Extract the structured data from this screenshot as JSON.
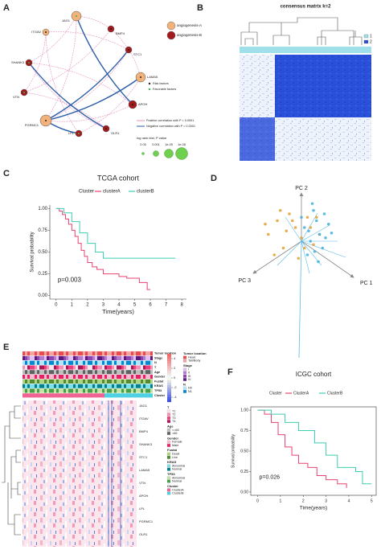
{
  "panel_labels": [
    "A",
    "B",
    "C",
    "D",
    "E",
    "F"
  ],
  "network": {
    "nodes": [
      {
        "label": "JAG1",
        "color": "#f2b27a"
      },
      {
        "label": "ITGAV",
        "color": "#f2b27a"
      },
      {
        "label": "BMP4",
        "color": "#a3191c"
      },
      {
        "label": "SHANK3",
        "color": "#a3191c"
      },
      {
        "label": "STC1",
        "color": "#a3191c"
      },
      {
        "label": "LAMA5",
        "color": "#f2b27a"
      },
      {
        "label": "VTN",
        "color": "#a3191c"
      },
      {
        "label": "APOH",
        "color": "#a3191c"
      },
      {
        "label": "PGRMC1",
        "color": "#f2b27a"
      },
      {
        "label": "LPL",
        "color": "#a3191c"
      },
      {
        "label": "OLR1",
        "color": "#a3191c"
      }
    ],
    "legend_groups": [
      {
        "name": "angiogenesis-A",
        "color": "#f2b27a"
      },
      {
        "name": "angiogenesis-B",
        "color": "#a3191c"
      }
    ],
    "factor_legend": [
      {
        "name": "Risk factors",
        "color": "#222222"
      },
      {
        "name": "Favorable factors",
        "color": "#3ab54a"
      }
    ],
    "edge_legend": [
      {
        "name": "Positive correlation with P < 0.0001",
        "color": "#e58fbf"
      },
      {
        "name": "Negative correlation with P < 0.0001",
        "color": "#2a5ca8"
      }
    ],
    "size_title": "log rank test, P value",
    "size_labels": [
      "0.05",
      "0.001",
      "1e-05",
      "1e-08"
    ]
  },
  "consensus": {
    "title": "consensus matrix k=2",
    "legend": [
      "1",
      "2"
    ]
  },
  "heatmap": {
    "annotations": [
      "Tumor location",
      "Stage",
      "N",
      "T",
      "Age",
      "Gender",
      "Fustat",
      "KRAS",
      "TP53",
      "Cluster"
    ],
    "color_ticks": [
      4,
      2,
      0,
      -2,
      -4
    ],
    "clim": [
      -5,
      5
    ],
    "genes": [
      "JAG1",
      "ITGAV",
      "BMP4",
      "SHANK3",
      "STC1",
      "LAMA5",
      "VTN",
      "APOH",
      "LPL",
      "PGRMC1",
      "OLR1"
    ],
    "legends": [
      {
        "title": "Tumor location",
        "items": [
          {
            "name": "Head",
            "color": "#e84c4c"
          },
          {
            "name": "Tail/Body",
            "color": "#f4a3a3"
          }
        ]
      },
      {
        "title": "Stage",
        "items": [
          {
            "name": "I",
            "color": "#e0c0f0"
          },
          {
            "name": "II",
            "color": "#b07cd0"
          },
          {
            "name": "III",
            "color": "#8e44ad"
          },
          {
            "name": "IV",
            "color": "#5b1a80"
          }
        ]
      },
      {
        "title": "N",
        "items": [
          {
            "name": "N0",
            "color": "#b3e5fc"
          },
          {
            "name": "N1",
            "color": "#0288d1"
          }
        ]
      },
      {
        "title": "T",
        "items": [
          {
            "name": "T1",
            "color": "#fce4ec"
          },
          {
            "name": "T2",
            "color": "#f48fb1"
          },
          {
            "name": "T3",
            "color": "#ec407a"
          },
          {
            "name": "T4",
            "color": "#ad1457"
          }
        ]
      },
      {
        "title": "Age",
        "items": [
          {
            "name": "<=65",
            "color": "#bdbdbd"
          },
          {
            "name": ">65",
            "color": "#616161"
          }
        ]
      },
      {
        "title": "Gender",
        "items": [
          {
            "name": "Female",
            "color": "#f8bbd0"
          },
          {
            "name": "Male",
            "color": "#e91e63"
          }
        ]
      },
      {
        "title": "Fustat",
        "items": [
          {
            "name": "Dead",
            "color": "#aed581"
          },
          {
            "name": "Live",
            "color": "#558b2f"
          }
        ]
      },
      {
        "title": "KRAS",
        "items": [
          {
            "name": "Abnormal",
            "color": "#80deea"
          },
          {
            "name": "Normal",
            "color": "#00838f"
          }
        ]
      },
      {
        "title": "TP53",
        "items": [
          {
            "name": "Abnormal",
            "color": "#c5e1a5"
          },
          {
            "name": "Normal",
            "color": "#43a047"
          }
        ]
      },
      {
        "title": "Cluster",
        "items": [
          {
            "name": "ClusterA",
            "color": "#f06292"
          },
          {
            "name": "ClusterB",
            "color": "#4dd0e1"
          }
        ]
      }
    ]
  },
  "chart_data": [
    {
      "type": "line",
      "step": true,
      "title": "TCGA cohort",
      "legend_title": "Cluster",
      "x_label": "Time(years)",
      "y_label": "Survival probability",
      "annotation": "p=0.003",
      "xlim": [
        -0.4,
        8.3
      ],
      "xticks": [
        0,
        1,
        2,
        3,
        4,
        5,
        6,
        7,
        8
      ],
      "ylim": [
        -0.04,
        1.04
      ],
      "yticks": [
        {
          "value": 0,
          "label": "0.00"
        },
        {
          "value": 0.25,
          "label": "0.25"
        },
        {
          "value": 0.5,
          "label": "0.50"
        },
        {
          "value": 0.75,
          "label": "0.75"
        },
        {
          "value": 1,
          "label": "1.00"
        }
      ],
      "series": [
        {
          "name": "clusterA",
          "color": "#e8436f",
          "x": [
            0,
            0.2,
            0.4,
            0.6,
            0.8,
            1.0,
            1.2,
            1.4,
            1.6,
            1.8,
            2.0,
            2.3,
            2.6,
            3.0,
            4.0,
            4.5,
            5.3,
            5.8,
            6.0
          ],
          "values": [
            1,
            0.97,
            0.93,
            0.88,
            0.82,
            0.75,
            0.68,
            0.6,
            0.52,
            0.45,
            0.38,
            0.33,
            0.3,
            0.25,
            0.22,
            0.2,
            0.15,
            0.07,
            0.07
          ]
        },
        {
          "name": "clusterB",
          "color": "#3ccfb0",
          "x": [
            0,
            0.5,
            1.0,
            1.5,
            2.0,
            2.5,
            3.0,
            7.6
          ],
          "values": [
            1,
            0.95,
            0.85,
            0.72,
            0.6,
            0.5,
            0.43,
            0.43
          ]
        }
      ]
    },
    {
      "type": "scatter",
      "axis_labels": [
        "PC 1",
        "PC 2",
        "PC 3"
      ],
      "xlim": [
        -1,
        1
      ],
      "ylim": [
        -1,
        1
      ],
      "series": [
        {
          "color": "#e0a030",
          "x": [
            -0.55,
            -0.4,
            -0.3,
            -0.2,
            -0.1,
            0,
            0.1,
            0.2,
            -0.45,
            -0.25,
            -0.05,
            0.15,
            0.3,
            -0.35,
            -0.15,
            0.05,
            -0.6,
            0.25
          ],
          "values": [
            0.1,
            0.3,
            -0.1,
            0.4,
            0.2,
            0.05,
            0.35,
            -0.05,
            -0.2,
            0.15,
            -0.25,
            0.2,
            0.1,
            0.45,
            0.3,
            -0.1,
            0.25,
            0.35
          ]
        },
        {
          "color": "#3fb0e0",
          "x": [
            0.05,
            0.15,
            0.25,
            0.35,
            0.45,
            0.1,
            0.2,
            0.3,
            0.4,
            0,
            0.22,
            0.38,
            0.12,
            0.28,
            0.5,
            0.18
          ],
          "values": [
            0.2,
            0,
            0.3,
            -0.1,
            0.25,
            -0.2,
            0.45,
            0.1,
            0.05,
            0.35,
            -0.15,
            0.4,
            0.15,
            -0.3,
            0.12,
            0.55
          ]
        }
      ]
    },
    {
      "type": "line",
      "step": true,
      "title": "ICGC cohort",
      "legend_title": "Cluster",
      "x_label": "Time(years)",
      "y_label": "Survival probability",
      "annotation": "p=0.026",
      "xlim": [
        -0.3,
        5.2
      ],
      "xticks": [
        0,
        1,
        2,
        3,
        4,
        5
      ],
      "ylim": [
        -0.04,
        1.04
      ],
      "yticks": [
        {
          "value": 0,
          "label": "0.00"
        },
        {
          "value": 0.25,
          "label": "0.25"
        },
        {
          "value": 0.5,
          "label": "0.50"
        },
        {
          "value": 0.75,
          "label": "0.75"
        },
        {
          "value": 1,
          "label": "1.00"
        }
      ],
      "series": [
        {
          "name": "ClusterA",
          "color": "#e8436f",
          "x": [
            0,
            0.3,
            0.6,
            0.9,
            1.2,
            1.5,
            1.8,
            2.2,
            2.6,
            3.0,
            3.5,
            3.9
          ],
          "values": [
            1,
            0.95,
            0.85,
            0.7,
            0.55,
            0.45,
            0.35,
            0.3,
            0.2,
            0.15,
            0.1,
            0.05
          ]
        },
        {
          "name": "ClusterB",
          "color": "#3ccfb0",
          "x": [
            0,
            0.6,
            1.2,
            1.8,
            2.5,
            3.0,
            3.5,
            4.3,
            4.6,
            5.0
          ],
          "values": [
            1,
            0.95,
            0.85,
            0.75,
            0.6,
            0.45,
            0.3,
            0.25,
            0.1,
            0.1
          ]
        }
      ]
    }
  ]
}
